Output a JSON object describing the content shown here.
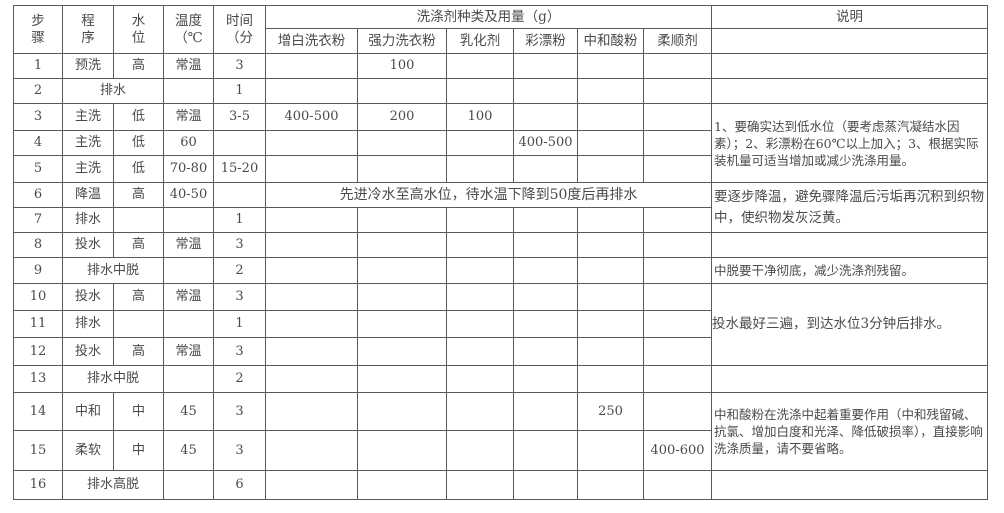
{
  "header": {
    "step": "步骤",
    "program": "程序",
    "water_level": "水位",
    "temperature": "温度（℃",
    "time": "时间（分",
    "detergent_group": "洗涤剂种类及用量（g）",
    "notes": "说明",
    "detergents": [
      "增白洗衣粉",
      "强力洗衣粉",
      "乳化剂",
      "彩漂粉",
      "中和酸粉",
      "柔顺剂"
    ]
  },
  "rows": [
    {
      "step": "1",
      "program": "预洗",
      "level": "高",
      "temp": "常温",
      "time": "3",
      "d": [
        "",
        "100",
        "",
        "",
        "",
        ""
      ]
    },
    {
      "step": "2",
      "program": "排水",
      "merge_program": true,
      "level": "",
      "temp": "",
      "time": "1",
      "d": [
        "",
        "",
        "",
        "",
        "",
        ""
      ]
    },
    {
      "step": "3",
      "program": "主洗",
      "level": "低",
      "temp": "常温",
      "time": "3-5",
      "d": [
        "400-500",
        "200",
        "100",
        "",
        "",
        ""
      ]
    },
    {
      "step": "4",
      "program": "主洗",
      "level": "低",
      "temp": "60",
      "time": "",
      "d": [
        "",
        "",
        "",
        "400-500",
        "",
        ""
      ]
    },
    {
      "step": "5",
      "program": "主洗",
      "level": "低",
      "temp": "70-80",
      "time": "15-20",
      "d": [
        "",
        "",
        "",
        "",
        "",
        ""
      ]
    },
    {
      "step": "6",
      "program": "降温",
      "level": "高",
      "temp": "40-50",
      "time": "",
      "merged_detergent": "先进冷水至高水位，待水温下降到50度后再排水"
    },
    {
      "step": "7",
      "program": "排水",
      "level": "",
      "temp": "",
      "time": "1",
      "d": [
        "",
        "",
        "",
        "",
        "",
        ""
      ]
    },
    {
      "step": "8",
      "program": "投水",
      "level": "高",
      "temp": "常温",
      "time": "3",
      "d": [
        "",
        "",
        "",
        "",
        "",
        ""
      ]
    },
    {
      "step": "9",
      "program": "排水中脱",
      "merge_program": true,
      "temp": "",
      "time": "2",
      "d": [
        "",
        "",
        "",
        "",
        "",
        ""
      ]
    },
    {
      "step": "10",
      "program": "投水",
      "level": "高",
      "temp": "常温",
      "time": "3",
      "d": [
        "",
        "",
        "",
        "",
        "",
        ""
      ]
    },
    {
      "step": "11",
      "program": "排水",
      "level": "",
      "temp": "",
      "time": "1",
      "d": [
        "",
        "",
        "",
        "",
        "",
        ""
      ]
    },
    {
      "step": "12",
      "program": "投水",
      "level": "高",
      "temp": "常温",
      "time": "3",
      "d": [
        "",
        "",
        "",
        "",
        "",
        ""
      ]
    },
    {
      "step": "13",
      "program": "排水中脱",
      "merge_program": true,
      "temp": "",
      "time": "2",
      "d": [
        "",
        "",
        "",
        "",
        "",
        ""
      ]
    },
    {
      "step": "14",
      "program": "中和",
      "level": "中",
      "temp": "45",
      "time": "3",
      "d": [
        "",
        "",
        "",
        "",
        "250",
        ""
      ]
    },
    {
      "step": "15",
      "program": "柔软",
      "level": "中",
      "temp": "45",
      "time": "3",
      "d": [
        "",
        "",
        "",
        "",
        "",
        "400-600"
      ]
    },
    {
      "step": "16",
      "program": "排水高脱",
      "merge_program": true,
      "temp": "",
      "time": "6",
      "d": [
        "",
        "",
        "",
        "",
        "",
        ""
      ]
    }
  ],
  "notes": [
    {
      "start": 0,
      "span": 1,
      "text": ""
    },
    {
      "start": 1,
      "span": 1,
      "text": ""
    },
    {
      "start": 2,
      "span": 3,
      "text": "1、要确实达到低水位（要考虑蒸汽凝结水因素）；2、彩漂粉在60℃以上加入；3、根据实际装机量可适当增加或减少洗涤用量。"
    },
    {
      "start": 5,
      "span": 2,
      "text": "要逐步降温，避免骤降温后污垢再沉积到织物中，使织物发灰泛黄。"
    },
    {
      "start": 7,
      "span": 1,
      "text": ""
    },
    {
      "start": 8,
      "span": 1,
      "text": "中脱要干净彻底，减少洗涤剂残留。"
    },
    {
      "start": 9,
      "span": 3,
      "text": "投水最好三遍，到达水位3分钟后排水。"
    },
    {
      "start": 12,
      "span": 1,
      "text": ""
    },
    {
      "start": 13,
      "span": 2,
      "text": "中和酸粉在洗涤中起着重要作用（中和残留碱、抗氯、增加白度和光泽、降低破损率），直接影响洗涤质量，请不要省略。"
    },
    {
      "start": 15,
      "span": 1,
      "text": ""
    }
  ]
}
